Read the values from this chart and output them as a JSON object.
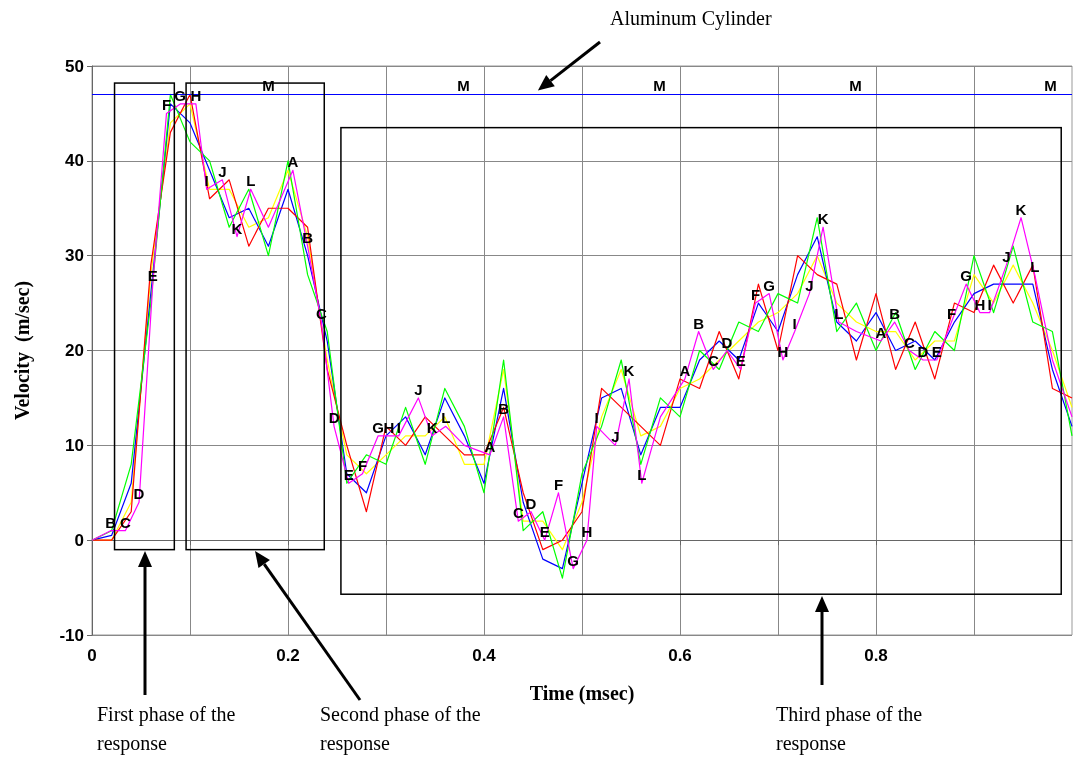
{
  "chart_data": {
    "type": "line",
    "xlabel": "Time (msec)",
    "ylabel": "Velocity  (m/sec)",
    "x": [
      0,
      0.02,
      0.04,
      0.06,
      0.08,
      0.1,
      0.12,
      0.14,
      0.16,
      0.18,
      0.2,
      0.22,
      0.24,
      0.26,
      0.28,
      0.3,
      0.32,
      0.34,
      0.36,
      0.38,
      0.4,
      0.42,
      0.44,
      0.46,
      0.48,
      0.5,
      0.52,
      0.54,
      0.56,
      0.58,
      0.6,
      0.62,
      0.64,
      0.66,
      0.68,
      0.7,
      0.72,
      0.74,
      0.76,
      0.78,
      0.8,
      0.82,
      0.84,
      0.86,
      0.88,
      0.9,
      0.92,
      0.94,
      0.96,
      0.98,
      1
    ],
    "series": [
      {
        "color": "#ffff00",
        "values": [
          0,
          0,
          4,
          28,
          44,
          46,
          37,
          37,
          33,
          34,
          39,
          32,
          19,
          9,
          7,
          9,
          11,
          11,
          13,
          8,
          8,
          18,
          2,
          2,
          -1,
          4,
          13,
          18,
          11,
          12,
          16,
          17,
          19,
          21,
          23,
          24,
          26,
          30,
          25,
          23,
          22,
          22,
          19,
          21,
          21,
          28,
          25,
          29,
          25,
          20,
          14
        ]
      },
      {
        "color": "#0000ff",
        "values": [
          0,
          0.5,
          6,
          26,
          46,
          44,
          39,
          34,
          35,
          31,
          37,
          30,
          21,
          7,
          5,
          11,
          13,
          9,
          15,
          11,
          6,
          16,
          4,
          -2,
          -3,
          6,
          15,
          16,
          9,
          14,
          14,
          19,
          21,
          19,
          25,
          22,
          28,
          32,
          23,
          21,
          24,
          20,
          21,
          19,
          23,
          26,
          27,
          27,
          27,
          18,
          12
        ]
      },
      {
        "color": "#ff0000",
        "values": [
          0,
          0,
          3,
          29,
          43,
          47,
          36,
          38,
          31,
          35,
          35,
          33,
          18,
          10,
          3,
          12,
          10,
          13,
          11,
          9,
          9,
          14,
          5,
          -1,
          0,
          3,
          16,
          14,
          12,
          10,
          17,
          16,
          22,
          17,
          27,
          20,
          30,
          28,
          27,
          19,
          26,
          18,
          23,
          17,
          25,
          24,
          29,
          25,
          29,
          16,
          15
        ]
      },
      {
        "color": "#00ff00",
        "values": [
          0,
          1,
          8,
          25,
          47,
          42,
          40,
          33,
          37,
          30,
          40,
          28,
          22,
          6,
          9,
          8,
          14,
          8,
          16,
          12,
          5,
          19,
          1,
          3,
          -4,
          7,
          12,
          19,
          8,
          15,
          13,
          20,
          18,
          23,
          22,
          26,
          25,
          34,
          22,
          25,
          20,
          24,
          18,
          22,
          20,
          30,
          24,
          31,
          23,
          22,
          11
        ]
      },
      {
        "color": "#ff00ff",
        "x": [
          0,
          0.019,
          0.034,
          0.048,
          0.062,
          0.076,
          0.09,
          0.106,
          0.117,
          0.133,
          0.148,
          0.162,
          0.18,
          0.205,
          0.22,
          0.234,
          0.247,
          0.262,
          0.276,
          0.292,
          0.303,
          0.313,
          0.333,
          0.347,
          0.361,
          0.38,
          0.406,
          0.42,
          0.435,
          0.448,
          0.462,
          0.476,
          0.491,
          0.505,
          0.515,
          0.534,
          0.548,
          0.561,
          0.58,
          0.605,
          0.619,
          0.634,
          0.648,
          0.662,
          0.677,
          0.691,
          0.705,
          0.717,
          0.732,
          0.746,
          0.762,
          0.78,
          0.805,
          0.819,
          0.834,
          0.848,
          0.862,
          0.877,
          0.892,
          0.906,
          0.916,
          0.933,
          0.948,
          0.962,
          0.98,
          1
        ],
        "values": [
          0,
          1,
          1,
          4,
          27,
          45,
          46,
          46,
          37,
          38,
          32,
          37,
          33,
          39,
          31,
          23,
          12,
          6,
          7,
          11,
          11,
          11,
          15,
          11,
          12,
          10,
          9,
          13,
          2,
          3,
          0,
          5,
          -3,
          0,
          12,
          10,
          17,
          6,
          13,
          17,
          22,
          18,
          20,
          18,
          25,
          26,
          19,
          22,
          26,
          33,
          23,
          22,
          21,
          23,
          20,
          19,
          19,
          23,
          27,
          24,
          24,
          29,
          34,
          28,
          19,
          13
        ]
      }
    ],
    "xlim": [
      0,
      1
    ],
    "xticks": [
      0,
      {
        "value": 0.1,
        "label": null
      },
      0.2,
      {
        "value": 0.3,
        "label": null
      },
      0.4,
      {
        "value": 0.5,
        "label": null
      },
      0.6,
      {
        "value": 0.7,
        "label": null
      },
      0.8,
      {
        "value": 0.9,
        "label": null
      }
    ],
    "ylim": [
      -10,
      50
    ],
    "yticks": [
      -10,
      0,
      10,
      20,
      30,
      40,
      50
    ],
    "grid": true,
    "marker": "none",
    "line_style": "solid",
    "ref_lines": [
      {
        "axis": "y",
        "value": 47,
        "color": "#0000ff"
      }
    ],
    "annotations": [
      "First phase of the response",
      "Second phase  of the response",
      "Third phase of the response",
      "Aluminum Cylinder",
      {
        "text": "M",
        "x": 0.18,
        "y": 47
      },
      {
        "text": "M",
        "x": 0.379,
        "y": 47
      },
      {
        "text": "M",
        "x": 0.579,
        "y": 47
      },
      {
        "text": "M",
        "x": 0.779,
        "y": 47
      },
      {
        "text": "M",
        "x": 0.978,
        "y": 47
      },
      {
        "text": "B",
        "x": 0.019,
        "y": 1
      },
      {
        "text": "C",
        "x": 0.034,
        "y": 1
      },
      {
        "text": "D",
        "x": 0.048,
        "y": 4
      },
      {
        "text": "E",
        "x": 0.062,
        "y": 27
      },
      {
        "text": "F",
        "x": 0.076,
        "y": 45
      },
      {
        "text": "G",
        "x": 0.09,
        "y": 46
      },
      {
        "text": "H",
        "x": 0.106,
        "y": 46
      },
      {
        "text": "I",
        "x": 0.117,
        "y": 37
      },
      {
        "text": "J",
        "x": 0.133,
        "y": 38
      },
      {
        "text": "K",
        "x": 0.148,
        "y": 32
      },
      {
        "text": "L",
        "x": 0.162,
        "y": 37
      },
      {
        "text": "A",
        "x": 0.205,
        "y": 39
      },
      {
        "text": "B",
        "x": 0.22,
        "y": 31
      },
      {
        "text": "C",
        "x": 0.234,
        "y": 23
      },
      {
        "text": "D",
        "x": 0.247,
        "y": 12
      },
      {
        "text": "E",
        "x": 0.262,
        "y": 6
      },
      {
        "text": "F",
        "x": 0.276,
        "y": 7
      },
      {
        "text": "G",
        "x": 0.292,
        "y": 11
      },
      {
        "text": "H",
        "x": 0.303,
        "y": 11
      },
      {
        "text": "I",
        "x": 0.313,
        "y": 11
      },
      {
        "text": "J",
        "x": 0.333,
        "y": 15
      },
      {
        "text": "K",
        "x": 0.347,
        "y": 11
      },
      {
        "text": "L",
        "x": 0.361,
        "y": 12
      },
      {
        "text": "A",
        "x": 0.406,
        "y": 9
      },
      {
        "text": "B",
        "x": 0.42,
        "y": 13
      },
      {
        "text": "C",
        "x": 0.435,
        "y": 2
      },
      {
        "text": "D",
        "x": 0.448,
        "y": 3
      },
      {
        "text": "E",
        "x": 0.462,
        "y": 0
      },
      {
        "text": "F",
        "x": 0.476,
        "y": 5
      },
      {
        "text": "G",
        "x": 0.491,
        "y": -3
      },
      {
        "text": "H",
        "x": 0.505,
        "y": 0
      },
      {
        "text": "I",
        "x": 0.515,
        "y": 12
      },
      {
        "text": "J",
        "x": 0.534,
        "y": 10
      },
      {
        "text": "K",
        "x": 0.548,
        "y": 17
      },
      {
        "text": "L",
        "x": 0.561,
        "y": 6
      },
      {
        "text": "A",
        "x": 0.605,
        "y": 17
      },
      {
        "text": "B",
        "x": 0.619,
        "y": 22
      },
      {
        "text": "C",
        "x": 0.634,
        "y": 18
      },
      {
        "text": "D",
        "x": 0.648,
        "y": 20
      },
      {
        "text": "E",
        "x": 0.662,
        "y": 18
      },
      {
        "text": "F",
        "x": 0.677,
        "y": 25
      },
      {
        "text": "G",
        "x": 0.691,
        "y": 26
      },
      {
        "text": "H",
        "x": 0.705,
        "y": 19
      },
      {
        "text": "I",
        "x": 0.717,
        "y": 22
      },
      {
        "text": "J",
        "x": 0.732,
        "y": 26
      },
      {
        "text": "K",
        "x": 0.746,
        "y": 33
      },
      {
        "text": "L",
        "x": 0.762,
        "y": 23
      },
      {
        "text": "A",
        "x": 0.805,
        "y": 21
      },
      {
        "text": "B",
        "x": 0.819,
        "y": 23
      },
      {
        "text": "C",
        "x": 0.834,
        "y": 20
      },
      {
        "text": "D",
        "x": 0.848,
        "y": 19
      },
      {
        "text": "E",
        "x": 0.862,
        "y": 19
      },
      {
        "text": "F",
        "x": 0.877,
        "y": 23
      },
      {
        "text": "G",
        "x": 0.892,
        "y": 27
      },
      {
        "text": "H",
        "x": 0.906,
        "y": 24
      },
      {
        "text": "I",
        "x": 0.916,
        "y": 24
      },
      {
        "text": "J",
        "x": 0.933,
        "y": 29
      },
      {
        "text": "K",
        "x": 0.948,
        "y": 34
      },
      {
        "text": "L",
        "x": 0.962,
        "y": 28
      }
    ]
  }
}
